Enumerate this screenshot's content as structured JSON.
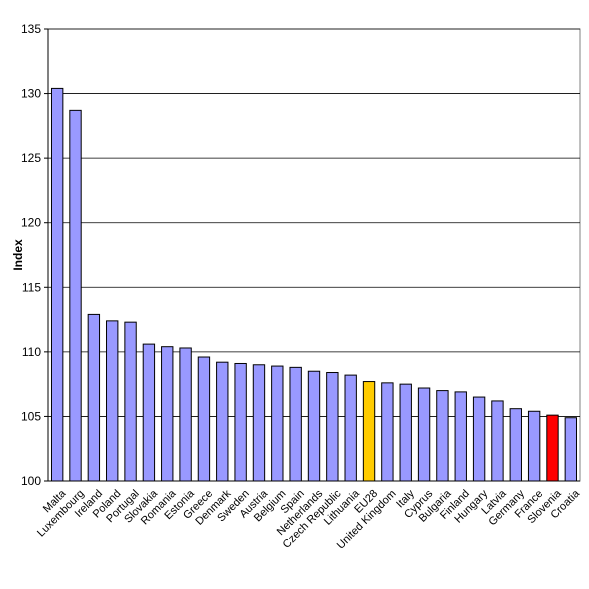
{
  "chart_data": {
    "type": "bar",
    "title": "",
    "xlabel": "",
    "ylabel": "Index",
    "ylim": [
      100,
      135
    ],
    "yticks": [
      100,
      105,
      110,
      115,
      120,
      125,
      130,
      135
    ],
    "grid": true,
    "colors": {
      "default": "#9999ff",
      "eu28": "#ffcc00",
      "slovenia": "#ff0000"
    },
    "categories": [
      "Malta",
      "Luxembourg",
      "Ireland",
      "Poland",
      "Portugal",
      "Slovakia",
      "Romania",
      "Estonia",
      "Greece",
      "Denmark",
      "Sweden",
      "Austria",
      "Belgium",
      "Spain",
      "Netherlands",
      "Czech Republic",
      "Lithuania",
      "EU28",
      "United Kingdom",
      "Italy",
      "Cyprus",
      "Bulgaria",
      "Finland",
      "Hungary",
      "Latvia",
      "Germany",
      "France",
      "Slovenia",
      "Croatia"
    ],
    "values": [
      130.4,
      128.7,
      112.9,
      112.4,
      112.3,
      110.6,
      110.4,
      110.3,
      109.6,
      109.2,
      109.1,
      109.0,
      108.9,
      108.8,
      108.5,
      108.4,
      108.2,
      107.7,
      107.6,
      107.5,
      107.2,
      107.0,
      106.9,
      106.5,
      106.2,
      105.6,
      105.4,
      105.1,
      104.9
    ],
    "bar_colors": [
      "default",
      "default",
      "default",
      "default",
      "default",
      "default",
      "default",
      "default",
      "default",
      "default",
      "default",
      "default",
      "default",
      "default",
      "default",
      "default",
      "default",
      "eu28",
      "default",
      "default",
      "default",
      "default",
      "default",
      "default",
      "default",
      "default",
      "default",
      "slovenia",
      "default"
    ]
  }
}
